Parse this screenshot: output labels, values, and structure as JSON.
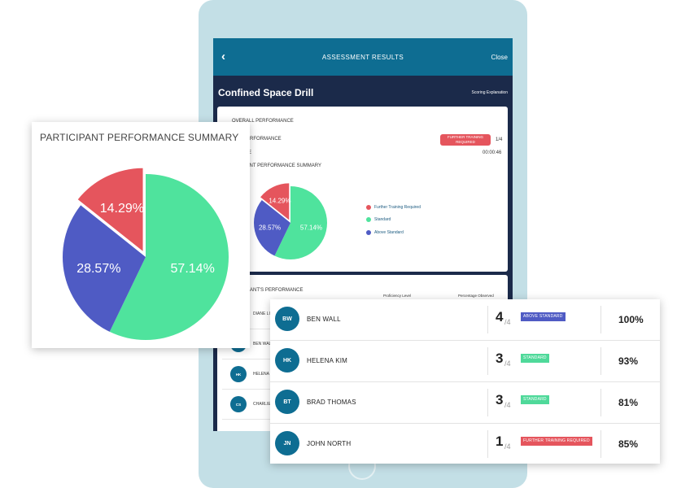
{
  "app_bar": {
    "back_icon": "chevron-left-icon",
    "back_glyph": "‹",
    "title": "ASSESSMENT RESULTS",
    "close_label": "Close"
  },
  "drill": {
    "title": "Confined Space Drill",
    "scoring_link": "Scoring Explanation"
  },
  "overall": {
    "section_title": "OVERALL PERFORMANCE",
    "performance_label": "PERFORMANCE",
    "performance_badge": "FURTHER TRAINING REQUIRED",
    "performance_score": "1/4",
    "time_label": "E",
    "time_value": "00:00:46",
    "summary_title": "PANT PERFORMANCE SUMMARY"
  },
  "legend": [
    {
      "label": "Further Training Required",
      "color": "#e5555d"
    },
    {
      "label": "Standard",
      "color": "#4fe39d"
    },
    {
      "label": "Above Standard",
      "color": "#4f5bc4"
    }
  ],
  "participants_section": {
    "title": "ANT'S PERFORMANCE",
    "col_proficiency": "Proficiency Level",
    "col_percentage": "Percentage Observed",
    "mini_rows": [
      {
        "initials": "",
        "name": "DIANE LI"
      },
      {
        "initials": "",
        "name": "BEN WALL"
      },
      {
        "initials": "HK",
        "name": "HELENA K"
      },
      {
        "initials": "CS",
        "name": "CHARLIE"
      }
    ]
  },
  "summary_card": {
    "title": "PARTICIPANT PERFORMANCE SUMMARY"
  },
  "chart_data": {
    "type": "pie",
    "title": "PARTICIPANT PERFORMANCE SUMMARY",
    "slices": [
      {
        "name": "Standard",
        "value": 57.14,
        "label": "57.14%",
        "color": "#4fe39d"
      },
      {
        "name": "Above Standard",
        "value": 28.57,
        "label": "28.57%",
        "color": "#4f5bc4"
      },
      {
        "name": "Further Training Required",
        "value": 14.29,
        "label": "14.29%",
        "color": "#e5555d"
      }
    ]
  },
  "participants": [
    {
      "initials": "BW",
      "name": "BEN WALL",
      "score": "4",
      "out_of": "/4",
      "level": "ABOVE STANDARD",
      "level_type": "above",
      "percentage": "100%"
    },
    {
      "initials": "HK",
      "name": "HELENA KIM",
      "score": "3",
      "out_of": "/4",
      "level": "STANDARD",
      "level_type": "standard",
      "percentage": "93%"
    },
    {
      "initials": "BT",
      "name": "BRAD THOMAS",
      "score": "3",
      "out_of": "/4",
      "level": "STANDARD",
      "level_type": "standard",
      "percentage": "81%"
    },
    {
      "initials": "JN",
      "name": "JOHN NORTH",
      "score": "1",
      "out_of": "/4",
      "level": "FURTHER TRAINING REQUIRED",
      "level_type": "further",
      "percentage": "85%"
    }
  ]
}
